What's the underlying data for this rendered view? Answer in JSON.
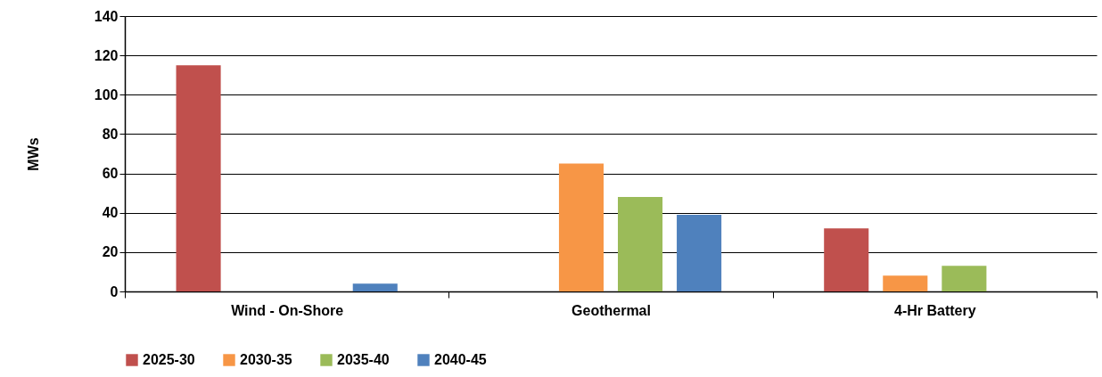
{
  "chart_data": {
    "type": "bar",
    "ylabel": "MWs",
    "categories": [
      "Wind - On-Shore",
      "Geothermal",
      "4-Hr Battery"
    ],
    "series": [
      {
        "name": "2025-30",
        "color": "#c0504d",
        "values": [
          115,
          0,
          32
        ]
      },
      {
        "name": "2030-35",
        "color": "#f79646",
        "values": [
          0,
          65,
          8
        ]
      },
      {
        "name": "2035-40",
        "color": "#9bbb59",
        "values": [
          0,
          48,
          13
        ]
      },
      {
        "name": "2040-45",
        "color": "#4f81bd",
        "values": [
          4,
          39,
          0
        ]
      }
    ],
    "ylim": [
      0,
      140
    ],
    "yticks": [
      0,
      20,
      40,
      60,
      80,
      100,
      120,
      140
    ],
    "grid": "y",
    "legend": "bottom"
  }
}
